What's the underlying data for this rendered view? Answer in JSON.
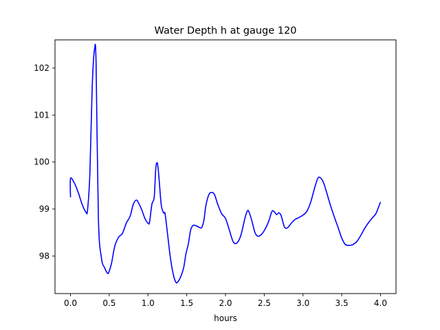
{
  "chart_data": {
    "type": "line",
    "title": "Water Depth h at gauge 120",
    "xlabel": "hours",
    "ylabel": "",
    "xlim": [
      -0.2,
      4.2
    ],
    "ylim": [
      97.2,
      102.6
    ],
    "xticks": [
      {
        "value": 0.0,
        "label": "0.0"
      },
      {
        "value": 0.5,
        "label": "0.5"
      },
      {
        "value": 1.0,
        "label": "1.0"
      },
      {
        "value": 1.5,
        "label": "1.5"
      },
      {
        "value": 2.0,
        "label": "2.0"
      },
      {
        "value": 2.5,
        "label": "2.5"
      },
      {
        "value": 3.0,
        "label": "3.0"
      },
      {
        "value": 3.5,
        "label": "3.5"
      },
      {
        "value": 4.0,
        "label": "4.0"
      }
    ],
    "yticks": [
      {
        "value": 98,
        "label": "98"
      },
      {
        "value": 99,
        "label": "99"
      },
      {
        "value": 100,
        "label": "100"
      },
      {
        "value": 101,
        "label": "101"
      },
      {
        "value": 102,
        "label": "102"
      }
    ],
    "grid": false,
    "line_color": "#0000ff",
    "series": [
      {
        "x": [
          0.0,
          0.0,
          0.05,
          0.1,
          0.15,
          0.2,
          0.22,
          0.25,
          0.28,
          0.31,
          0.33,
          0.36,
          0.4,
          0.44,
          0.48,
          0.5,
          0.53,
          0.57,
          0.62,
          0.67,
          0.72,
          0.77,
          0.81,
          0.85,
          0.88,
          0.92,
          0.96,
          1.0,
          1.02,
          1.05,
          1.08,
          1.1,
          1.12,
          1.14,
          1.17,
          1.2,
          1.22,
          1.25,
          1.29,
          1.33,
          1.36,
          1.38,
          1.42,
          1.46,
          1.49,
          1.52,
          1.55,
          1.58,
          1.61,
          1.65,
          1.69,
          1.72,
          1.75,
          1.79,
          1.83,
          1.86,
          1.9,
          1.95,
          2.0,
          2.05,
          2.1,
          2.15,
          2.2,
          2.25,
          2.28,
          2.3,
          2.34,
          2.38,
          2.42,
          2.47,
          2.52,
          2.56,
          2.6,
          2.63,
          2.66,
          2.69,
          2.72,
          2.76,
          2.8,
          2.85,
          2.9,
          2.95,
          3.0,
          3.05,
          3.1,
          3.15,
          3.19,
          3.22,
          3.26,
          3.3,
          3.35,
          3.4,
          3.45,
          3.5,
          3.55,
          3.62,
          3.66,
          3.7,
          3.75,
          3.8,
          3.85,
          3.9,
          3.94,
          3.97,
          4.0
        ],
        "y": [
          99.25,
          99.65,
          99.55,
          99.35,
          99.1,
          98.93,
          98.98,
          99.75,
          101.6,
          102.4,
          102.1,
          98.8,
          97.95,
          97.75,
          97.63,
          97.68,
          97.85,
          98.2,
          98.4,
          98.48,
          98.7,
          98.85,
          99.1,
          99.19,
          99.12,
          98.98,
          98.8,
          98.7,
          98.72,
          99.1,
          99.25,
          99.85,
          99.98,
          99.7,
          99.1,
          98.92,
          98.9,
          98.5,
          97.95,
          97.58,
          97.44,
          97.44,
          97.55,
          97.75,
          98.05,
          98.25,
          98.55,
          98.65,
          98.65,
          98.62,
          98.6,
          98.75,
          99.1,
          99.32,
          99.35,
          99.3,
          99.1,
          98.9,
          98.8,
          98.55,
          98.3,
          98.28,
          98.45,
          98.8,
          98.95,
          98.95,
          98.75,
          98.5,
          98.42,
          98.47,
          98.6,
          98.75,
          98.95,
          98.94,
          98.88,
          98.92,
          98.85,
          98.62,
          98.6,
          98.7,
          98.78,
          98.82,
          98.87,
          98.95,
          99.15,
          99.45,
          99.65,
          99.67,
          99.58,
          99.38,
          99.1,
          98.85,
          98.62,
          98.38,
          98.24,
          98.23,
          98.26,
          98.32,
          98.45,
          98.6,
          98.72,
          98.82,
          98.9,
          99.02,
          99.15
        ]
      }
    ]
  }
}
